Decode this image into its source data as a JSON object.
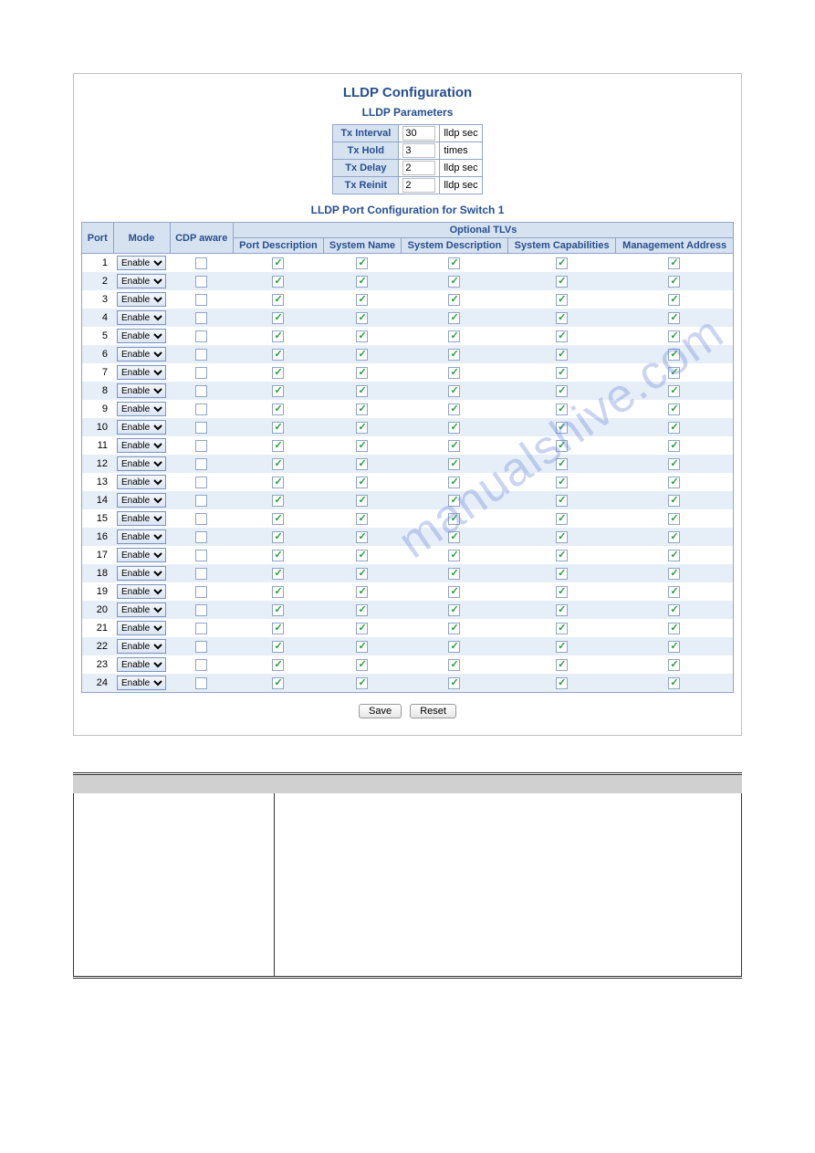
{
  "title": "LLDP Configuration",
  "params_title": "LLDP Parameters",
  "params": [
    {
      "label": "Tx Interval",
      "value": "30",
      "unit": "lldp sec"
    },
    {
      "label": "Tx Hold",
      "value": "3",
      "unit": "times"
    },
    {
      "label": "Tx Delay",
      "value": "2",
      "unit": "lldp sec"
    },
    {
      "label": "Tx Reinit",
      "value": "2",
      "unit": "lldp sec"
    }
  ],
  "port_title": "LLDP Port Configuration for Switch 1",
  "headers": {
    "port": "Port",
    "mode": "Mode",
    "cdp": "CDP aware",
    "optional": "Optional TLVs",
    "pd": "Port Description",
    "sn": "System Name",
    "sd": "System Description",
    "sc": "System Capabilities",
    "ma": "Management Address"
  },
  "mode_option": "Enable",
  "ports": [
    {
      "n": "1",
      "cdp": false,
      "pd": true,
      "sn": true,
      "sd": true,
      "sc": true,
      "ma": true
    },
    {
      "n": "2",
      "cdp": false,
      "pd": true,
      "sn": true,
      "sd": true,
      "sc": true,
      "ma": true
    },
    {
      "n": "3",
      "cdp": false,
      "pd": true,
      "sn": true,
      "sd": true,
      "sc": true,
      "ma": true
    },
    {
      "n": "4",
      "cdp": false,
      "pd": true,
      "sn": true,
      "sd": true,
      "sc": true,
      "ma": true
    },
    {
      "n": "5",
      "cdp": false,
      "pd": true,
      "sn": true,
      "sd": true,
      "sc": true,
      "ma": true
    },
    {
      "n": "6",
      "cdp": false,
      "pd": true,
      "sn": true,
      "sd": true,
      "sc": true,
      "ma": true
    },
    {
      "n": "7",
      "cdp": false,
      "pd": true,
      "sn": true,
      "sd": true,
      "sc": true,
      "ma": true
    },
    {
      "n": "8",
      "cdp": false,
      "pd": true,
      "sn": true,
      "sd": true,
      "sc": true,
      "ma": true
    },
    {
      "n": "9",
      "cdp": false,
      "pd": true,
      "sn": true,
      "sd": true,
      "sc": true,
      "ma": true
    },
    {
      "n": "10",
      "cdp": false,
      "pd": true,
      "sn": true,
      "sd": true,
      "sc": true,
      "ma": true
    },
    {
      "n": "11",
      "cdp": false,
      "pd": true,
      "sn": true,
      "sd": true,
      "sc": true,
      "ma": true
    },
    {
      "n": "12",
      "cdp": false,
      "pd": true,
      "sn": true,
      "sd": true,
      "sc": true,
      "ma": true
    },
    {
      "n": "13",
      "cdp": false,
      "pd": true,
      "sn": true,
      "sd": true,
      "sc": true,
      "ma": true
    },
    {
      "n": "14",
      "cdp": false,
      "pd": true,
      "sn": true,
      "sd": true,
      "sc": true,
      "ma": true
    },
    {
      "n": "15",
      "cdp": false,
      "pd": true,
      "sn": true,
      "sd": true,
      "sc": true,
      "ma": true
    },
    {
      "n": "16",
      "cdp": false,
      "pd": true,
      "sn": true,
      "sd": true,
      "sc": true,
      "ma": true
    },
    {
      "n": "17",
      "cdp": false,
      "pd": true,
      "sn": true,
      "sd": true,
      "sc": true,
      "ma": true
    },
    {
      "n": "18",
      "cdp": false,
      "pd": true,
      "sn": true,
      "sd": true,
      "sc": true,
      "ma": true
    },
    {
      "n": "19",
      "cdp": false,
      "pd": true,
      "sn": true,
      "sd": true,
      "sc": true,
      "ma": true
    },
    {
      "n": "20",
      "cdp": false,
      "pd": true,
      "sn": true,
      "sd": true,
      "sc": true,
      "ma": true
    },
    {
      "n": "21",
      "cdp": false,
      "pd": true,
      "sn": true,
      "sd": true,
      "sc": true,
      "ma": true
    },
    {
      "n": "22",
      "cdp": false,
      "pd": true,
      "sn": true,
      "sd": true,
      "sc": true,
      "ma": true
    },
    {
      "n": "23",
      "cdp": false,
      "pd": true,
      "sn": true,
      "sd": true,
      "sc": true,
      "ma": true
    },
    {
      "n": "24",
      "cdp": false,
      "pd": true,
      "sn": true,
      "sd": true,
      "sc": true,
      "ma": true
    }
  ],
  "buttons": {
    "save": "Save",
    "reset": "Reset"
  },
  "watermark": "manualshive.com",
  "colors": {
    "heading": "#274f8f",
    "th_bg": "#d7e2f0",
    "border": "#8fa5c9",
    "row_even": "#e6eef7",
    "row_odd": "#ffffff",
    "check_color": "#2a9d3c"
  }
}
